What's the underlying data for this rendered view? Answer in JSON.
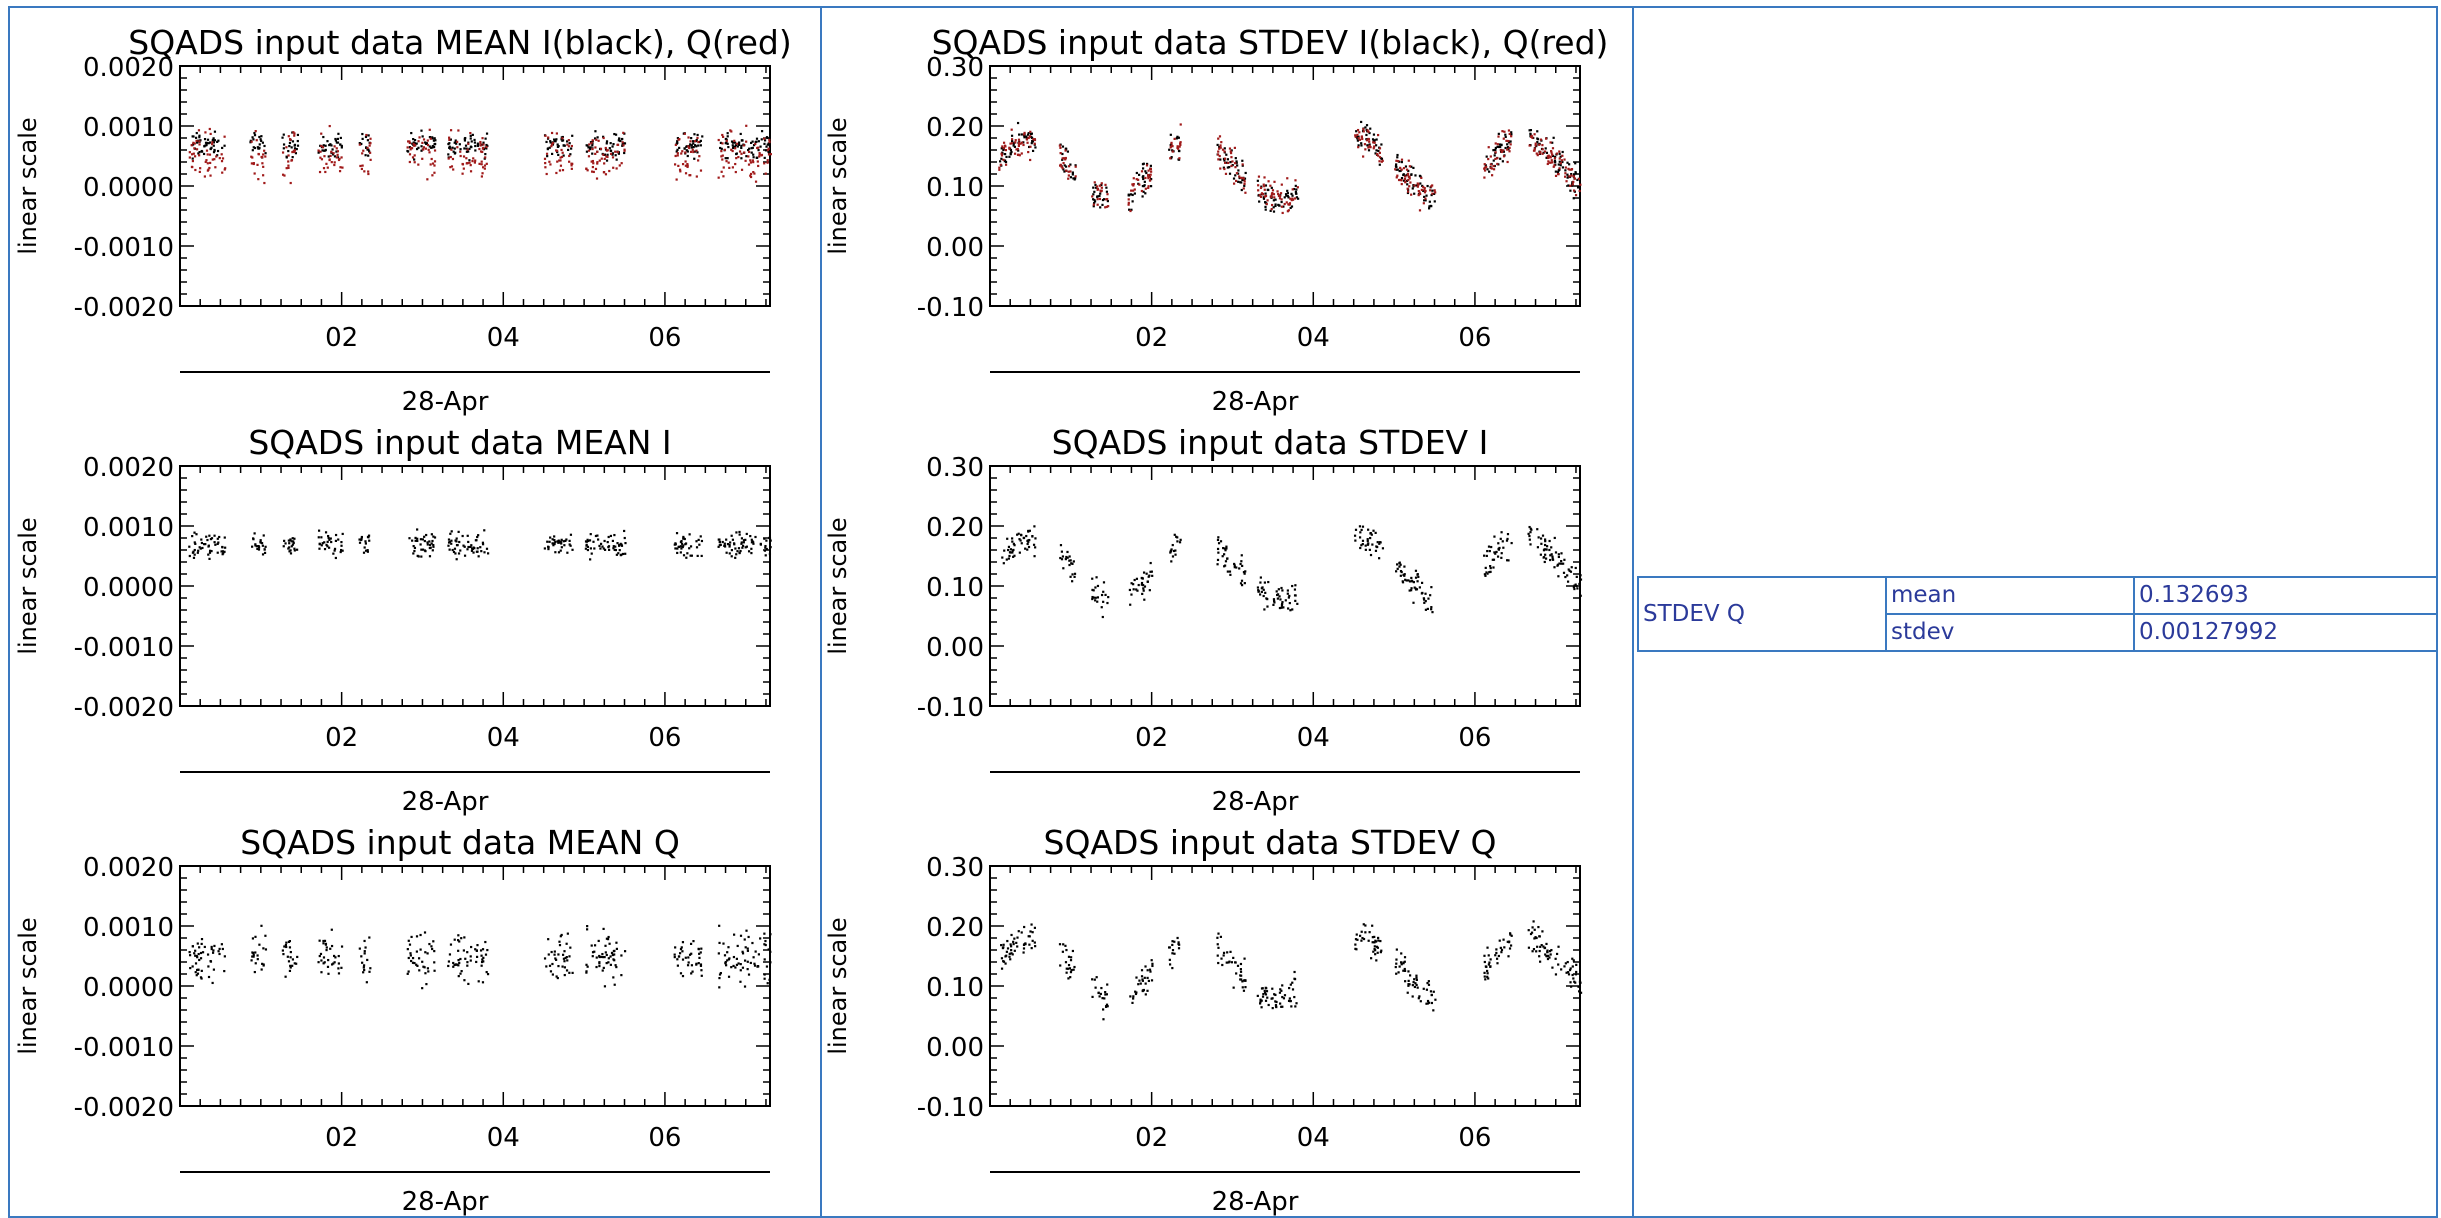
{
  "page": {
    "stats_table": {
      "label": "STDEV Q",
      "rows": [
        {
          "key": "mean",
          "value": "0.132693"
        },
        {
          "key": "stdev",
          "value": "0.00127992"
        }
      ]
    }
  },
  "colors": {
    "frame": "#3a79c0",
    "black_series": "#000000",
    "red_series": "#a01a1a",
    "table_text": "#2b3a9a"
  },
  "chart_data": [
    {
      "type": "scatter",
      "title": "SQADS input data MEAN I(black), Q(red)",
      "ylabel": "linear scale",
      "xlabel": "28-Apr",
      "ylim": [
        -0.002,
        0.002
      ],
      "yticks": [
        "0.0020",
        "0.0010",
        "0.0000",
        "-0.0010",
        "-0.0020"
      ],
      "ytick_values": [
        0.002,
        0.001,
        0.0,
        -0.001,
        -0.002
      ],
      "xlim": [
        0,
        7.3
      ],
      "xticks": [
        "02",
        "04",
        "06"
      ],
      "xtick_values": [
        2,
        4,
        6
      ],
      "series": [
        {
          "color": "#000000",
          "profile": "meanI",
          "base": 0.0007,
          "spread": 0.0003
        },
        {
          "color": "#a01a1a",
          "profile": "meanQ",
          "base": 0.0005,
          "spread": 0.0006
        }
      ]
    },
    {
      "type": "scatter",
      "title": "SQADS input data STDEV I(black), Q(red)",
      "ylabel": "linear scale",
      "xlabel": "28-Apr",
      "ylim": [
        -0.1,
        0.3
      ],
      "yticks": [
        "0.30",
        "0.20",
        "0.10",
        "0.00",
        "-0.10"
      ],
      "ytick_values": [
        0.3,
        0.2,
        0.1,
        0.0,
        -0.1
      ],
      "xlim": [
        0,
        7.3
      ],
      "xticks": [
        "02",
        "04",
        "06"
      ],
      "xtick_values": [
        2,
        4,
        6
      ],
      "series": [
        {
          "color": "#000000",
          "profile": "stdev",
          "base": 0.13,
          "spread": 0.04
        },
        {
          "color": "#a01a1a",
          "profile": "stdev",
          "base": 0.13,
          "spread": 0.04
        }
      ]
    },
    {
      "type": "scatter",
      "title": "SQADS input data MEAN I",
      "ylabel": "linear scale",
      "xlabel": "28-Apr",
      "ylim": [
        -0.002,
        0.002
      ],
      "yticks": [
        "0.0020",
        "0.0010",
        "0.0000",
        "-0.0010",
        "-0.0020"
      ],
      "ytick_values": [
        0.002,
        0.001,
        0.0,
        -0.001,
        -0.002
      ],
      "xlim": [
        0,
        7.3
      ],
      "xticks": [
        "02",
        "04",
        "06"
      ],
      "xtick_values": [
        2,
        4,
        6
      ],
      "series": [
        {
          "color": "#000000",
          "profile": "meanI",
          "base": 0.0007,
          "spread": 0.0003
        }
      ]
    },
    {
      "type": "scatter",
      "title": "SQADS input data STDEV I",
      "ylabel": "linear scale",
      "xlabel": "28-Apr",
      "ylim": [
        -0.1,
        0.3
      ],
      "yticks": [
        "0.30",
        "0.20",
        "0.10",
        "0.00",
        "-0.10"
      ],
      "ytick_values": [
        0.3,
        0.2,
        0.1,
        0.0,
        -0.1
      ],
      "xlim": [
        0,
        7.3
      ],
      "xticks": [
        "02",
        "04",
        "06"
      ],
      "xtick_values": [
        2,
        4,
        6
      ],
      "series": [
        {
          "color": "#000000",
          "profile": "stdev",
          "base": 0.13,
          "spread": 0.04
        }
      ]
    },
    {
      "type": "scatter",
      "title": "SQADS input data MEAN Q",
      "ylabel": "linear scale",
      "xlabel": "28-Apr",
      "ylim": [
        -0.002,
        0.002
      ],
      "yticks": [
        "0.0020",
        "0.0010",
        "0.0000",
        "-0.0010",
        "-0.0020"
      ],
      "ytick_values": [
        0.002,
        0.001,
        0.0,
        -0.001,
        -0.002
      ],
      "xlim": [
        0,
        7.3
      ],
      "xticks": [
        "02",
        "04",
        "06"
      ],
      "xtick_values": [
        2,
        4,
        6
      ],
      "series": [
        {
          "color": "#000000",
          "profile": "meanQ",
          "base": 0.0005,
          "spread": 0.0006
        }
      ]
    },
    {
      "type": "scatter",
      "title": "SQADS input data STDEV Q",
      "ylabel": "linear scale",
      "xlabel": "28-Apr",
      "ylim": [
        -0.1,
        0.3
      ],
      "yticks": [
        "0.30",
        "0.20",
        "0.10",
        "0.00",
        "-0.10"
      ],
      "ytick_values": [
        0.3,
        0.2,
        0.1,
        0.0,
        -0.1
      ],
      "xlim": [
        0,
        7.3
      ],
      "xticks": [
        "02",
        "04",
        "06"
      ],
      "xtick_values": [
        2,
        4,
        6
      ],
      "series": [
        {
          "color": "#000000",
          "profile": "stdev",
          "base": 0.13,
          "spread": 0.04
        }
      ]
    }
  ]
}
